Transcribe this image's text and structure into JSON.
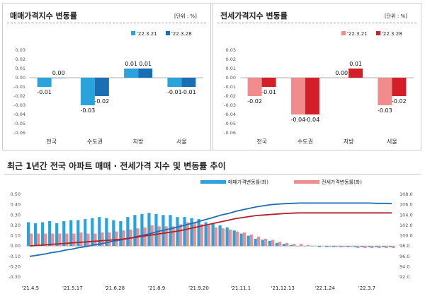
{
  "chart_data": [
    {
      "type": "bar",
      "title": "매매가격지수 변동률",
      "unit_label": "[단위 : %]",
      "categories": [
        "전국",
        "수도권",
        "지방",
        "서울"
      ],
      "series": [
        {
          "name": "'22.3.21",
          "color": "#2aa3dc",
          "values": [
            -0.01,
            -0.03,
            0.01,
            -0.01
          ]
        },
        {
          "name": "'22.3.28",
          "color": "#1a6fb4",
          "values": [
            0.0,
            -0.02,
            0.01,
            -0.01
          ]
        }
      ],
      "data_labels": [
        [
          "-0.01",
          "-0.03",
          "0.01",
          "-0.01"
        ],
        [
          "0.00",
          "-0.02",
          "0.01",
          "-0.01"
        ]
      ],
      "ylim": [
        -0.06,
        0.03
      ],
      "yticks": [
        "-0.06",
        "-0.05",
        "-0.04",
        "-0.03",
        "-0.02",
        "-0.01",
        "0.00",
        "0.01",
        "0.02",
        "0.03"
      ],
      "legend_position": "top-right"
    },
    {
      "type": "bar",
      "title": "전세가격지수 변동률",
      "unit_label": "[단위 : %]",
      "categories": [
        "전국",
        "수도권",
        "지방",
        "서울"
      ],
      "series": [
        {
          "name": "'22.3.21",
          "color": "#f08c8c",
          "values": [
            -0.02,
            -0.04,
            0.0,
            -0.03
          ]
        },
        {
          "name": "'22.3.28",
          "color": "#d31f2a",
          "values": [
            -0.01,
            -0.04,
            0.01,
            -0.02
          ]
        }
      ],
      "data_labels": [
        [
          "-0.02",
          "-0.04",
          "0.00",
          "-0.03"
        ],
        [
          "-0.01",
          "-0.04",
          "0.01",
          "-0.02"
        ]
      ],
      "ylim": [
        -0.06,
        0.03
      ],
      "yticks": [
        "-0.06",
        "-0.05",
        "-0.04",
        "-0.03",
        "-0.02",
        "-0.01",
        "0.00",
        "0.01",
        "0.02",
        "0.03"
      ],
      "legend_position": "top-right"
    },
    {
      "type": "bar",
      "title": "최근 1년간 전국 아파트 매매 · 전세가격 지수 및 변동률 추이",
      "x_ticks": [
        "'21.4.5",
        "'21.5.17",
        "'21.6.28",
        "'21.8.9",
        "'21.9.20",
        "'21.11.1",
        "'21.12.13",
        "'22.1.24",
        "'22.3.7"
      ],
      "y_left_ticks": [
        "-0.30",
        "-0.20",
        "-0.10",
        "0.00",
        "0.10",
        "0.20",
        "0.30",
        "0.40",
        "0.50"
      ],
      "y_left_lim": [
        -0.3,
        0.5
      ],
      "y_right_ticks": [
        "92.0",
        "94.0",
        "96.0",
        "98.0",
        "100.0",
        "102.0",
        "104.0",
        "106.0",
        "108.0"
      ],
      "y_right_lim": [
        92,
        108
      ],
      "legend_position": "top",
      "bar_series": [
        {
          "name": "매매가격변동률(좌)",
          "color": "#2aa3dc",
          "values": [
            0.23,
            0.22,
            0.23,
            0.24,
            0.22,
            0.24,
            0.25,
            0.25,
            0.26,
            0.27,
            0.28,
            0.27,
            0.25,
            0.24,
            0.28,
            0.3,
            0.31,
            0.32,
            0.31,
            0.3,
            0.3,
            0.28,
            0.28,
            0.27,
            0.26,
            0.23,
            0.22,
            0.2,
            0.18,
            0.15,
            0.12,
            0.1,
            0.07,
            0.06,
            0.05,
            0.03,
            0.02,
            0.01,
            0.0,
            0.0,
            0.0,
            -0.01,
            -0.01,
            -0.01,
            -0.01,
            -0.01,
            -0.01,
            -0.01,
            -0.01,
            -0.01,
            -0.01,
            -0.01
          ]
        },
        {
          "name": "전세가격변동률(좌)",
          "color": "#f08c8c",
          "values": [
            0.12,
            0.12,
            0.12,
            0.12,
            0.12,
            0.12,
            0.12,
            0.13,
            0.12,
            0.12,
            0.13,
            0.13,
            0.14,
            0.15,
            0.16,
            0.17,
            0.18,
            0.2,
            0.19,
            0.19,
            0.19,
            0.21,
            0.23,
            0.23,
            0.21,
            0.2,
            0.18,
            0.17,
            0.16,
            0.14,
            0.13,
            0.11,
            0.09,
            0.07,
            0.06,
            0.04,
            0.03,
            0.02,
            0.02,
            0.01,
            0.0,
            0.0,
            -0.01,
            -0.01,
            -0.01,
            -0.01,
            -0.02,
            -0.02,
            -0.02,
            -0.02,
            -0.02,
            -0.02
          ]
        }
      ],
      "line_series": [
        {
          "color": "#1f6db4",
          "values": [
            96.0,
            96.2,
            96.4,
            96.7,
            96.9,
            97.2,
            97.4,
            97.7,
            97.9,
            98.2,
            98.4,
            98.7,
            99.0,
            99.2,
            99.5,
            99.8,
            100.1,
            100.4,
            100.8,
            101.1,
            101.4,
            101.7,
            102.1,
            102.4,
            102.8,
            103.2,
            103.6,
            104.0,
            104.3,
            104.7,
            105.0,
            105.3,
            105.6,
            105.8,
            106.0,
            106.1,
            106.2,
            106.25,
            106.3,
            106.3,
            106.3,
            106.3,
            106.3,
            106.3,
            106.3,
            106.3,
            106.3,
            106.3,
            106.3,
            106.25,
            106.25,
            106.2
          ]
        },
        {
          "color": "#b3212a",
          "values": [
            98.0,
            98.1,
            98.2,
            98.3,
            98.4,
            98.5,
            98.6,
            98.7,
            98.8,
            98.9,
            99.0,
            99.1,
            99.2,
            99.3,
            99.5,
            99.7,
            99.9,
            100.1,
            100.3,
            100.5,
            100.7,
            100.9,
            101.2,
            101.5,
            101.8,
            102.1,
            102.4,
            102.7,
            103.0,
            103.3,
            103.5,
            103.7,
            103.9,
            104.0,
            104.1,
            104.2,
            104.3,
            104.35,
            104.4,
            104.4,
            104.4,
            104.4,
            104.4,
            104.4,
            104.4,
            104.4,
            104.4,
            104.4,
            104.4,
            104.4,
            104.4,
            104.4
          ]
        }
      ]
    }
  ]
}
